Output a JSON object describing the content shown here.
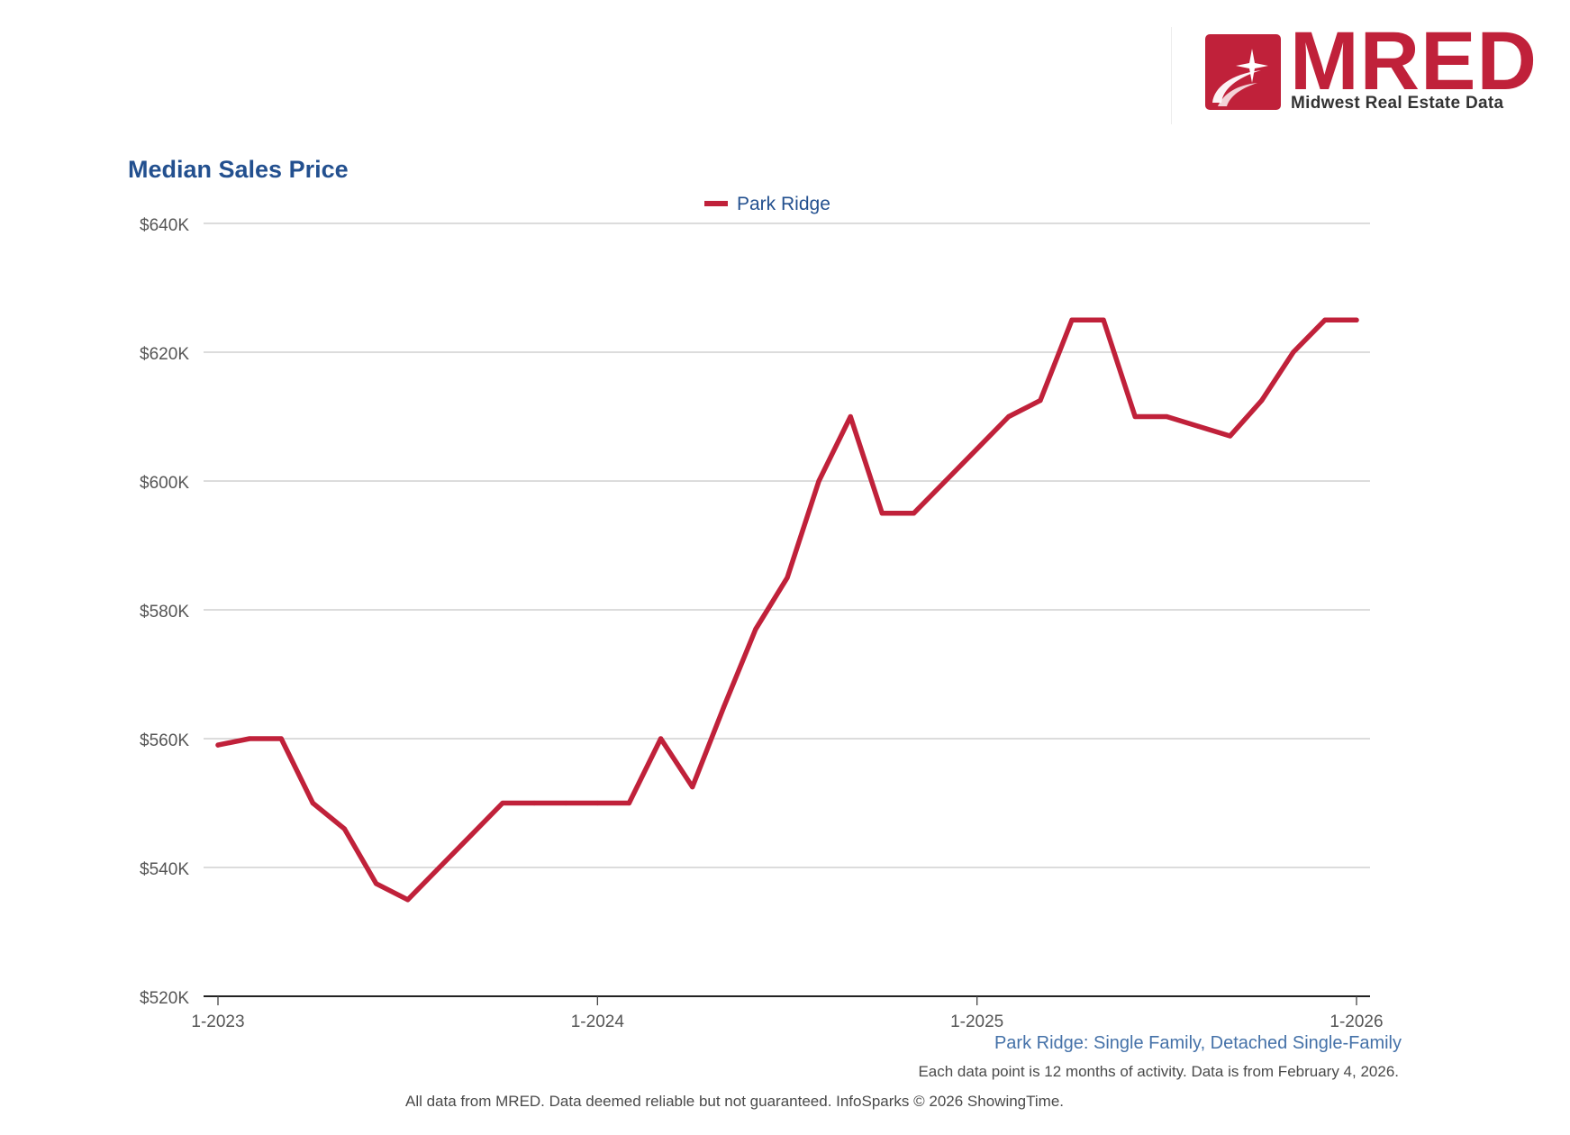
{
  "brand": {
    "name": "MRED",
    "subtitle": "Midwest Real Estate Data",
    "accent_color": "#c0213a"
  },
  "chart_data": {
    "type": "line",
    "title": "Median Sales Price",
    "xlabel": "",
    "ylabel": "",
    "x_ticks": [
      "1-2023",
      "1-2024",
      "1-2025",
      "1-2026"
    ],
    "y_ticks": [
      "$520K",
      "$540K",
      "$560K",
      "$580K",
      "$600K",
      "$620K",
      "$640K"
    ],
    "ylim": [
      520000,
      640000
    ],
    "x": [
      "1-2023",
      "2-2023",
      "3-2023",
      "4-2023",
      "5-2023",
      "6-2023",
      "7-2023",
      "8-2023",
      "9-2023",
      "10-2023",
      "11-2023",
      "12-2023",
      "1-2024",
      "2-2024",
      "3-2024",
      "4-2024",
      "5-2024",
      "6-2024",
      "7-2024",
      "8-2024",
      "9-2024",
      "10-2024",
      "11-2024",
      "12-2024",
      "1-2025",
      "2-2025",
      "3-2025",
      "4-2025",
      "5-2025",
      "6-2025",
      "7-2025",
      "8-2025",
      "9-2025",
      "10-2025",
      "11-2025",
      "12-2025",
      "1-2026"
    ],
    "series": [
      {
        "name": "Park Ridge",
        "color": "#c0213a",
        "values": [
          559000,
          560000,
          560000,
          550000,
          546000,
          537500,
          535000,
          540000,
          545000,
          550000,
          550000,
          550000,
          550000,
          550000,
          560000,
          552500,
          565000,
          577000,
          585000,
          600000,
          610000,
          595000,
          595000,
          600000,
          605000,
          610000,
          612500,
          625000,
          625000,
          610000,
          610000,
          608500,
          607000,
          612500,
          620000,
          625000,
          625000
        ]
      }
    ],
    "grid": true,
    "legend": "top-center"
  },
  "caption": "Park Ridge: Single Family, Detached Single-Family",
  "note": "Each data point is 12 months of activity. Data is from February 4, 2026.",
  "footer": "All data from MRED. Data deemed reliable but not guaranteed. InfoSparks © 2026 ShowingTime."
}
